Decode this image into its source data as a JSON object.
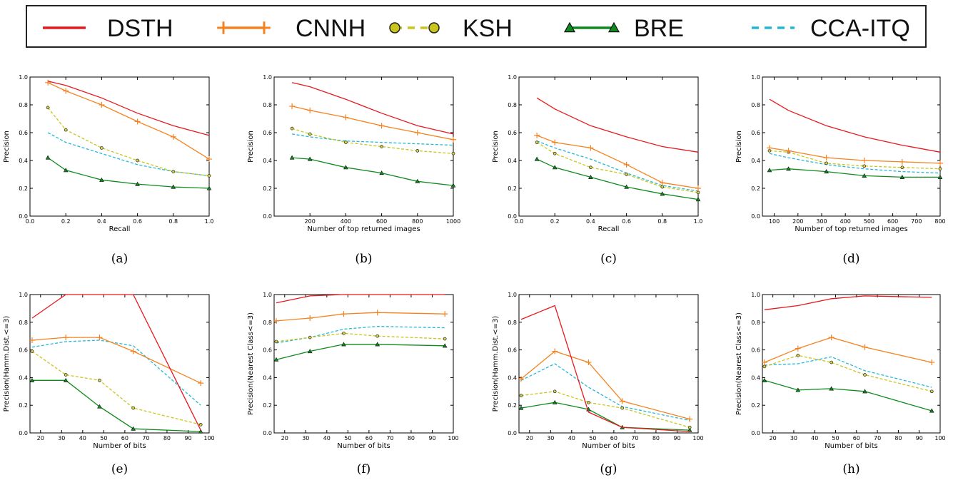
{
  "legend": [
    {
      "name": "DSTH",
      "color": "#e8191c",
      "dash": "none",
      "marker": "none"
    },
    {
      "name": "CNNH",
      "color": "#f5821f",
      "dash": "none",
      "marker": "plus"
    },
    {
      "name": "KSH",
      "color": "#c9c51c",
      "dash": "dashed",
      "marker": "circle"
    },
    {
      "name": "BRE",
      "color": "#0f8a1e",
      "dash": "none",
      "marker": "triangle"
    },
    {
      "name": "CCA-ITQ",
      "color": "#23b8d8",
      "dash": "dashed",
      "marker": "none"
    }
  ],
  "chart_data": [
    {
      "caption": "(a)",
      "type": "line",
      "xlabel": "Recall",
      "ylabel": "Precision",
      "xlim": [
        0,
        1
      ],
      "ylim": [
        0,
        1
      ],
      "xticks": [
        "0.0",
        "0.2",
        "0.4",
        "0.6",
        "0.8",
        "1.0"
      ],
      "yticks": [
        "0.0",
        "0.2",
        "0.4",
        "0.6",
        "0.8",
        "1.0"
      ],
      "series": [
        {
          "name": "DSTH",
          "x": [
            0.1,
            0.2,
            0.4,
            0.6,
            0.8,
            1.0
          ],
          "y": [
            0.97,
            0.94,
            0.85,
            0.74,
            0.65,
            0.58
          ]
        },
        {
          "name": "CNNH",
          "x": [
            0.1,
            0.2,
            0.4,
            0.6,
            0.8,
            1.0
          ],
          "y": [
            0.96,
            0.9,
            0.8,
            0.68,
            0.57,
            0.41
          ]
        },
        {
          "name": "KSH",
          "x": [
            0.1,
            0.2,
            0.4,
            0.6,
            0.8,
            1.0
          ],
          "y": [
            0.78,
            0.62,
            0.49,
            0.4,
            0.32,
            0.29
          ]
        },
        {
          "name": "BRE",
          "x": [
            0.1,
            0.2,
            0.4,
            0.6,
            0.8,
            1.0
          ],
          "y": [
            0.42,
            0.33,
            0.26,
            0.23,
            0.21,
            0.2
          ]
        },
        {
          "name": "CCA-ITQ",
          "x": [
            0.1,
            0.2,
            0.4,
            0.6,
            0.8,
            1.0
          ],
          "y": [
            0.6,
            0.53,
            0.45,
            0.37,
            0.32,
            0.29
          ]
        }
      ]
    },
    {
      "caption": "(b)",
      "type": "line",
      "xlabel": "Number of top returned images",
      "ylabel": "Precision",
      "xlim": [
        0,
        1000
      ],
      "ylim": [
        0,
        1
      ],
      "xticks": [
        "200",
        "400",
        "600",
        "800",
        "1000"
      ],
      "yticks": [
        "0.0",
        "0.2",
        "0.4",
        "0.6",
        "0.8",
        "1.0"
      ],
      "series": [
        {
          "name": "DSTH",
          "x": [
            100,
            200,
            400,
            600,
            800,
            1000
          ],
          "y": [
            0.96,
            0.93,
            0.84,
            0.74,
            0.65,
            0.59
          ]
        },
        {
          "name": "CNNH",
          "x": [
            100,
            200,
            400,
            600,
            800,
            1000
          ],
          "y": [
            0.79,
            0.76,
            0.71,
            0.65,
            0.6,
            0.55
          ]
        },
        {
          "name": "KSH",
          "x": [
            100,
            200,
            400,
            600,
            800,
            1000
          ],
          "y": [
            0.63,
            0.59,
            0.53,
            0.5,
            0.47,
            0.45
          ]
        },
        {
          "name": "BRE",
          "x": [
            100,
            200,
            400,
            600,
            800,
            1000
          ],
          "y": [
            0.42,
            0.41,
            0.35,
            0.31,
            0.25,
            0.22
          ]
        },
        {
          "name": "CCA-ITQ",
          "x": [
            100,
            200,
            400,
            600,
            800,
            1000
          ],
          "y": [
            0.59,
            0.57,
            0.54,
            0.53,
            0.52,
            0.51
          ]
        }
      ]
    },
    {
      "caption": "(c)",
      "type": "line",
      "xlabel": "Recall",
      "ylabel": "Precision",
      "xlim": [
        0,
        1
      ],
      "ylim": [
        0,
        1
      ],
      "xticks": [
        "0.0",
        "0.2",
        "0.4",
        "0.6",
        "0.8",
        "1.0"
      ],
      "yticks": [
        "0.0",
        "0.2",
        "0.4",
        "0.6",
        "0.8",
        "1.0"
      ],
      "series": [
        {
          "name": "DSTH",
          "x": [
            0.1,
            0.2,
            0.4,
            0.6,
            0.8,
            1.0
          ],
          "y": [
            0.85,
            0.77,
            0.65,
            0.57,
            0.5,
            0.46
          ]
        },
        {
          "name": "CNNH",
          "x": [
            0.1,
            0.2,
            0.4,
            0.6,
            0.8,
            1.0
          ],
          "y": [
            0.58,
            0.53,
            0.49,
            0.37,
            0.24,
            0.2
          ]
        },
        {
          "name": "KSH",
          "x": [
            0.1,
            0.2,
            0.4,
            0.6,
            0.8,
            1.0
          ],
          "y": [
            0.53,
            0.45,
            0.35,
            0.3,
            0.21,
            0.17
          ]
        },
        {
          "name": "BRE",
          "x": [
            0.1,
            0.2,
            0.4,
            0.6,
            0.8,
            1.0
          ],
          "y": [
            0.41,
            0.35,
            0.28,
            0.21,
            0.16,
            0.12
          ]
        },
        {
          "name": "CCA-ITQ",
          "x": [
            0.1,
            0.2,
            0.4,
            0.6,
            0.8,
            1.0
          ],
          "y": [
            0.54,
            0.49,
            0.41,
            0.31,
            0.22,
            0.18
          ]
        }
      ]
    },
    {
      "caption": "(d)",
      "type": "line",
      "xlabel": "Number of top returned images",
      "ylabel": "Precision",
      "xlim": [
        50,
        800
      ],
      "ylim": [
        0,
        1
      ],
      "xticks": [
        "100",
        "200",
        "300",
        "400",
        "500",
        "600",
        "700",
        "800"
      ],
      "yticks": [
        "0.0",
        "0.2",
        "0.4",
        "0.6",
        "0.8",
        "1.0"
      ],
      "series": [
        {
          "name": "DSTH",
          "x": [
            80,
            160,
            320,
            480,
            640,
            800
          ],
          "y": [
            0.84,
            0.76,
            0.65,
            0.57,
            0.51,
            0.46
          ]
        },
        {
          "name": "CNNH",
          "x": [
            80,
            160,
            320,
            480,
            640,
            800
          ],
          "y": [
            0.49,
            0.47,
            0.42,
            0.4,
            0.39,
            0.38
          ]
        },
        {
          "name": "KSH",
          "x": [
            80,
            160,
            320,
            480,
            640,
            800
          ],
          "y": [
            0.47,
            0.46,
            0.38,
            0.36,
            0.35,
            0.34
          ]
        },
        {
          "name": "BRE",
          "x": [
            80,
            160,
            320,
            480,
            640,
            800
          ],
          "y": [
            0.33,
            0.34,
            0.32,
            0.29,
            0.28,
            0.28
          ]
        },
        {
          "name": "CCA-ITQ",
          "x": [
            80,
            160,
            320,
            480,
            640,
            800
          ],
          "y": [
            0.45,
            0.42,
            0.37,
            0.34,
            0.32,
            0.31
          ]
        }
      ]
    },
    {
      "caption": "(e)",
      "type": "line",
      "xlabel": "Number of bits",
      "ylabel": "Precision(Hamm.Dist.<=3)",
      "xlim": [
        15,
        100
      ],
      "ylim": [
        0,
        1
      ],
      "xticks": [
        "20",
        "30",
        "40",
        "50",
        "60",
        "70",
        "80",
        "90",
        "100"
      ],
      "yticks": [
        "0.0",
        "0.2",
        "0.4",
        "0.6",
        "0.8",
        "1.0"
      ],
      "series": [
        {
          "name": "DSTH",
          "x": [
            16,
            32,
            48,
            64,
            96
          ],
          "y": [
            0.83,
            1.0,
            1.0,
            1.0,
            0.02
          ]
        },
        {
          "name": "CNNH",
          "x": [
            16,
            32,
            48,
            64,
            96
          ],
          "y": [
            0.67,
            0.69,
            0.69,
            0.59,
            0.36
          ]
        },
        {
          "name": "KSH",
          "x": [
            16,
            32,
            48,
            64,
            96
          ],
          "y": [
            0.59,
            0.42,
            0.38,
            0.18,
            0.06
          ]
        },
        {
          "name": "BRE",
          "x": [
            16,
            32,
            48,
            64,
            96
          ],
          "y": [
            0.38,
            0.38,
            0.19,
            0.03,
            0.01
          ]
        },
        {
          "name": "CCA-ITQ",
          "x": [
            16,
            32,
            48,
            64,
            96
          ],
          "y": [
            0.62,
            0.66,
            0.67,
            0.63,
            0.2
          ]
        }
      ]
    },
    {
      "caption": "(f)",
      "type": "line",
      "xlabel": "Number of bits",
      "ylabel": "Precision(Nearest Class<=3)",
      "xlim": [
        15,
        100
      ],
      "ylim": [
        0,
        1
      ],
      "xticks": [
        "20",
        "30",
        "40",
        "50",
        "60",
        "70",
        "80",
        "90",
        "100"
      ],
      "yticks": [
        "0.0",
        "0.2",
        "0.4",
        "0.6",
        "0.8",
        "1.0"
      ],
      "series": [
        {
          "name": "DSTH",
          "x": [
            16,
            32,
            48,
            64,
            96
          ],
          "y": [
            0.94,
            0.99,
            1.0,
            1.0,
            1.0
          ]
        },
        {
          "name": "CNNH",
          "x": [
            16,
            32,
            48,
            64,
            96
          ],
          "y": [
            0.81,
            0.83,
            0.86,
            0.87,
            0.86
          ]
        },
        {
          "name": "KSH",
          "x": [
            16,
            32,
            48,
            64,
            96
          ],
          "y": [
            0.66,
            0.69,
            0.72,
            0.7,
            0.68
          ]
        },
        {
          "name": "BRE",
          "x": [
            16,
            32,
            48,
            64,
            96
          ],
          "y": [
            0.53,
            0.59,
            0.64,
            0.64,
            0.63
          ]
        },
        {
          "name": "CCA-ITQ",
          "x": [
            16,
            32,
            48,
            64,
            96
          ],
          "y": [
            0.65,
            0.69,
            0.75,
            0.77,
            0.76
          ]
        }
      ]
    },
    {
      "caption": "(g)",
      "type": "line",
      "xlabel": "Number of bits",
      "ylabel": "Precision(Hamm.Dist.<=3)",
      "xlim": [
        15,
        100
      ],
      "ylim": [
        0,
        1
      ],
      "xticks": [
        "20",
        "30",
        "40",
        "50",
        "60",
        "70",
        "80",
        "90",
        "100"
      ],
      "yticks": [
        "0.0",
        "0.2",
        "0.4",
        "0.6",
        "0.8",
        "1.0"
      ],
      "series": [
        {
          "name": "DSTH",
          "x": [
            16,
            32,
            48,
            64,
            96
          ],
          "y": [
            0.82,
            0.92,
            0.15,
            0.04,
            0.01
          ]
        },
        {
          "name": "CNNH",
          "x": [
            16,
            32,
            48,
            64,
            96
          ],
          "y": [
            0.39,
            0.59,
            0.51,
            0.23,
            0.1
          ]
        },
        {
          "name": "KSH",
          "x": [
            16,
            32,
            48,
            64,
            96
          ],
          "y": [
            0.27,
            0.3,
            0.22,
            0.18,
            0.04
          ]
        },
        {
          "name": "BRE",
          "x": [
            16,
            32,
            48,
            64,
            96
          ],
          "y": [
            0.18,
            0.22,
            0.17,
            0.04,
            0.02
          ]
        },
        {
          "name": "CCA-ITQ",
          "x": [
            16,
            32,
            48,
            64,
            96
          ],
          "y": [
            0.38,
            0.5,
            0.33,
            0.19,
            0.09
          ]
        }
      ]
    },
    {
      "caption": "(h)",
      "type": "line",
      "xlabel": "Number of bits",
      "ylabel": "Precision(Nearest Class<=3)",
      "xlim": [
        15,
        100
      ],
      "ylim": [
        0,
        1
      ],
      "xticks": [
        "20",
        "30",
        "40",
        "50",
        "60",
        "70",
        "80",
        "90",
        "100"
      ],
      "yticks": [
        "0.0",
        "0.2",
        "0.4",
        "0.6",
        "0.8",
        "1.0"
      ],
      "series": [
        {
          "name": "DSTH",
          "x": [
            16,
            32,
            48,
            64,
            96
          ],
          "y": [
            0.89,
            0.92,
            0.97,
            0.99,
            0.98
          ]
        },
        {
          "name": "CNNH",
          "x": [
            16,
            32,
            48,
            64,
            96
          ],
          "y": [
            0.51,
            0.61,
            0.69,
            0.62,
            0.51
          ]
        },
        {
          "name": "KSH",
          "x": [
            16,
            32,
            48,
            64,
            96
          ],
          "y": [
            0.48,
            0.56,
            0.51,
            0.42,
            0.3
          ]
        },
        {
          "name": "BRE",
          "x": [
            16,
            32,
            48,
            64,
            96
          ],
          "y": [
            0.38,
            0.31,
            0.32,
            0.3,
            0.16
          ]
        },
        {
          "name": "CCA-ITQ",
          "x": [
            16,
            32,
            48,
            64,
            96
          ],
          "y": [
            0.49,
            0.5,
            0.55,
            0.45,
            0.33
          ]
        }
      ]
    }
  ]
}
